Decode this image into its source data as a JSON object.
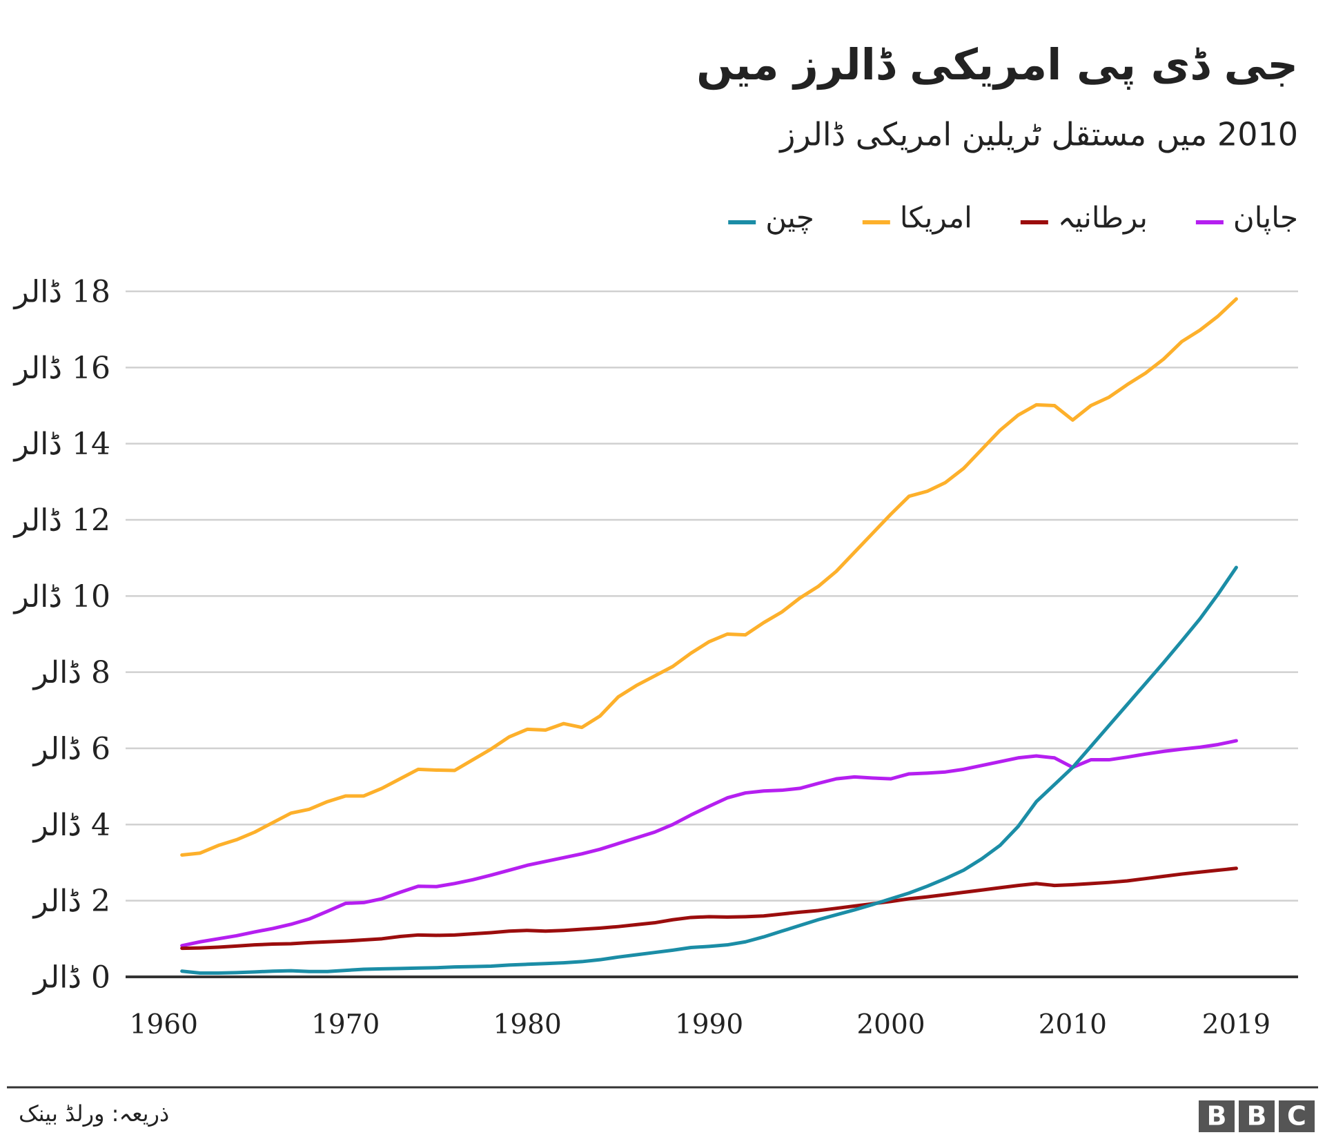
{
  "chart_data": {
    "type": "line",
    "title": "جی ڈی پی امریکی ڈالرز میں",
    "subtitle": "2010 میں مستقل ٹریلین امریکی ڈالرز",
    "source": "ذریعہ: ورلڈ بینک",
    "logo": [
      "B",
      "B",
      "C"
    ],
    "x": [
      1961,
      1962,
      1963,
      1964,
      1965,
      1966,
      1967,
      1968,
      1969,
      1970,
      1971,
      1972,
      1973,
      1974,
      1975,
      1976,
      1977,
      1978,
      1979,
      1980,
      1981,
      1982,
      1983,
      1984,
      1985,
      1986,
      1987,
      1988,
      1989,
      1990,
      1991,
      1992,
      1993,
      1994,
      1995,
      1996,
      1997,
      1998,
      1999,
      2000,
      2001,
      2002,
      2003,
      2004,
      2005,
      2006,
      2007,
      2008,
      2009,
      2010,
      2011,
      2012,
      2013,
      2014,
      2015,
      2016,
      2017,
      2018,
      2019
    ],
    "xlim": [
      1957.9,
      2022.4
    ],
    "xticks": [
      1960,
      1970,
      1980,
      1990,
      2000,
      2010,
      2019
    ],
    "ylim": [
      0,
      18
    ],
    "yticks": [
      {
        "value": 0,
        "label": "0 ڈالر"
      },
      {
        "value": 2,
        "label": "2 ڈالر"
      },
      {
        "value": 4,
        "label": "4 ڈالر"
      },
      {
        "value": 6,
        "label": "6 ڈالر"
      },
      {
        "value": 8,
        "label": "8 ڈالر"
      },
      {
        "value": 10,
        "label": "10 ڈالر"
      },
      {
        "value": 12,
        "label": "12 ڈالر"
      },
      {
        "value": 14,
        "label": "14 ڈالر"
      },
      {
        "value": 16,
        "label": "16 ڈالر"
      },
      {
        "value": 18,
        "label": "18 ڈالر"
      }
    ],
    "grid": true,
    "legend": "top-right",
    "series": [
      {
        "name": "جاپان",
        "color": "#b51ff0",
        "values": [
          0.82,
          0.92,
          1.0,
          1.08,
          1.18,
          1.27,
          1.38,
          1.52,
          1.72,
          1.93,
          1.95,
          2.05,
          2.22,
          2.38,
          2.37,
          2.45,
          2.55,
          2.67,
          2.8,
          2.93,
          3.03,
          3.13,
          3.23,
          3.35,
          3.5,
          3.65,
          3.8,
          4.0,
          4.25,
          4.48,
          4.7,
          4.83,
          4.88,
          4.9,
          4.95,
          5.08,
          5.2,
          5.25,
          5.22,
          5.2,
          5.33,
          5.35,
          5.38,
          5.45,
          5.55,
          5.65,
          5.75,
          5.8,
          5.75,
          5.5,
          5.7,
          5.7,
          5.77,
          5.85,
          5.92,
          5.98,
          6.03,
          6.1,
          6.2
        ]
      },
      {
        "name": "برطانیہ",
        "color": "#9b0d0d",
        "values": [
          0.75,
          0.76,
          0.78,
          0.81,
          0.84,
          0.86,
          0.87,
          0.9,
          0.92,
          0.94,
          0.97,
          1.0,
          1.06,
          1.1,
          1.09,
          1.1,
          1.13,
          1.16,
          1.2,
          1.22,
          1.2,
          1.22,
          1.25,
          1.28,
          1.32,
          1.37,
          1.42,
          1.5,
          1.56,
          1.58,
          1.57,
          1.58,
          1.6,
          1.65,
          1.7,
          1.74,
          1.8,
          1.86,
          1.92,
          1.98,
          2.05,
          2.1,
          2.16,
          2.22,
          2.28,
          2.34,
          2.4,
          2.45,
          2.4,
          2.42,
          2.45,
          2.48,
          2.52,
          2.58,
          2.64,
          2.7,
          2.75,
          2.8,
          2.85
        ]
      },
      {
        "name": "امریکا",
        "color": "#fdb02b",
        "values": [
          3.2,
          3.25,
          3.45,
          3.6,
          3.8,
          4.05,
          4.3,
          4.4,
          4.6,
          4.75,
          4.75,
          4.95,
          5.2,
          5.45,
          5.43,
          5.42,
          5.7,
          5.98,
          6.3,
          6.5,
          6.48,
          6.65,
          6.55,
          6.85,
          7.35,
          7.65,
          7.9,
          8.15,
          8.5,
          8.8,
          9.0,
          8.98,
          9.3,
          9.58,
          9.95,
          10.25,
          10.65,
          11.15,
          11.65,
          12.15,
          12.62,
          12.75,
          12.98,
          13.35,
          13.85,
          14.35,
          14.75,
          15.02,
          15.0,
          14.62,
          15.0,
          15.22,
          15.55,
          15.85,
          16.22,
          16.68,
          16.98,
          17.35,
          17.8
        ]
      },
      {
        "name": "چین",
        "color": "#1b8da6",
        "values": [
          0.15,
          0.1,
          0.1,
          0.11,
          0.13,
          0.15,
          0.16,
          0.14,
          0.14,
          0.17,
          0.2,
          0.21,
          0.22,
          0.23,
          0.24,
          0.26,
          0.27,
          0.28,
          0.31,
          0.33,
          0.35,
          0.37,
          0.4,
          0.45,
          0.52,
          0.58,
          0.64,
          0.7,
          0.77,
          0.8,
          0.84,
          0.92,
          1.05,
          1.2,
          1.35,
          1.5,
          1.63,
          1.76,
          1.9,
          2.05,
          2.2,
          2.38,
          2.58,
          2.8,
          3.1,
          3.45,
          3.95,
          4.6,
          5.05,
          5.5,
          6.05,
          6.6,
          7.15,
          7.7,
          8.25,
          8.82,
          9.4,
          10.05,
          10.75
        ]
      }
    ]
  }
}
